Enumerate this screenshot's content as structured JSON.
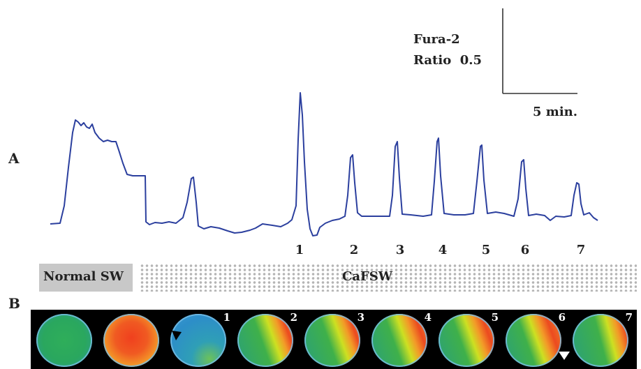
{
  "panel_a": {
    "label": "A",
    "scale_bar": {
      "y_label_line1": "Fura-2",
      "y_label_line2": "Ratio  0.5",
      "x_label": "5 min."
    },
    "trace_color": "#2b3f9e",
    "peak_labels": [
      "1",
      "2",
      "3",
      "4",
      "5",
      "6",
      "7"
    ]
  },
  "condition_bar": {
    "normal_label": "Normal SW",
    "cafsw_label": "CaFSW"
  },
  "panel_b": {
    "label": "B",
    "frames": [
      {
        "number": "",
        "state": "uniform-green"
      },
      {
        "number": "",
        "state": "uniform-red"
      },
      {
        "number": "1",
        "state": "uniform-blue",
        "marker": "black-arrowhead"
      },
      {
        "number": "2",
        "state": "wave-right"
      },
      {
        "number": "3",
        "state": "wave-right"
      },
      {
        "number": "4",
        "state": "wave-right"
      },
      {
        "number": "5",
        "state": "wave-right"
      },
      {
        "number": "6",
        "state": "wave-right",
        "marker": "white-arrowhead"
      },
      {
        "number": "7",
        "state": "wave-right-small"
      }
    ]
  }
}
